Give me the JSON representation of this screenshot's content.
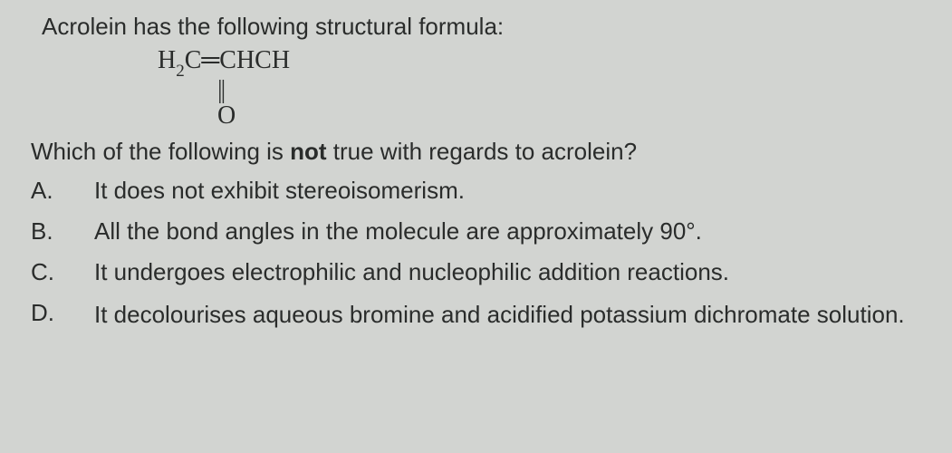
{
  "intro": "Acrolein has the following structural formula:",
  "formula": {
    "line1_html": "H<span class='sub'>2</span>C&#9552;CHCH",
    "line2": "||",
    "line3": "O"
  },
  "question_prefix": "Which of the following is ",
  "question_not": "not",
  "question_suffix": " true with regards to acrolein?",
  "options": {
    "A": {
      "letter": "A.",
      "text": "It does not exhibit stereoisomerism."
    },
    "B": {
      "letter": "B.",
      "text": "All the bond angles in the molecule are approximately 90°."
    },
    "C": {
      "letter": "C.",
      "text": "It undergoes electrophilic and nucleophilic addition reactions."
    },
    "D": {
      "letter": "D.",
      "text": "It decolourises aqueous bromine and acidified potassium dichromate solution."
    }
  }
}
